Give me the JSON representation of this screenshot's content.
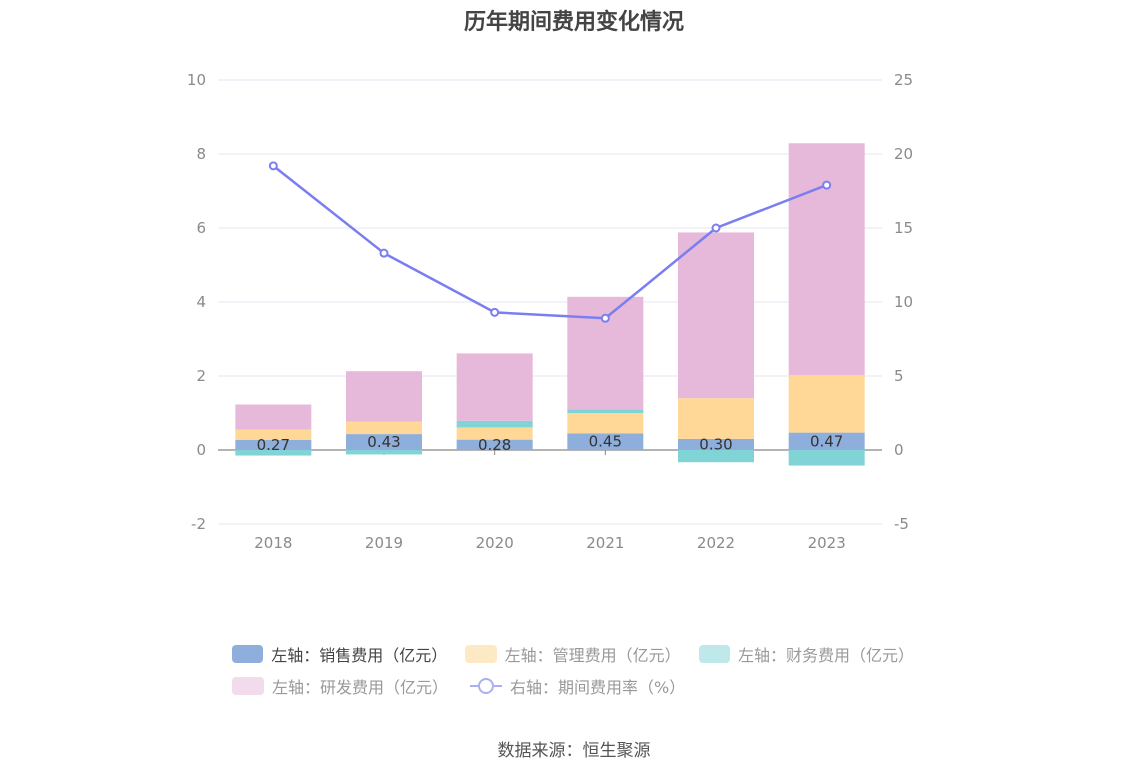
{
  "title": "历年期间费用变化情况",
  "source": "数据来源：恒生聚源",
  "colors": {
    "sales": "#8eaedc",
    "admin": "#ffd898",
    "finance": "#80d4d6",
    "rd": "#e6b8da",
    "rate": "#7b7ef0",
    "grid": "#e6e6f2",
    "zero": "#888888"
  },
  "legend": [
    {
      "label": "左轴：销售费用（亿元）",
      "color": "#8eaedc",
      "active": true
    },
    {
      "label": "左轴：管理费用（亿元）",
      "color": "#fde9c4",
      "active": false
    },
    {
      "label": "左轴：财务费用（亿元）",
      "color": "#bfe8ea",
      "active": false
    },
    {
      "label": "左轴：研发费用（亿元）",
      "color": "#f2dcec",
      "active": false
    },
    {
      "label": "右轴：期间费用率（%）",
      "color": "#aab0f0",
      "active": false,
      "line": true
    }
  ],
  "chart_data": {
    "type": "bar",
    "stacked": true,
    "categories": [
      "2018",
      "2019",
      "2020",
      "2021",
      "2022",
      "2023"
    ],
    "series": [
      {
        "name": "左轴：销售费用（亿元）",
        "axis": "left",
        "values": [
          0.27,
          0.43,
          0.28,
          0.45,
          0.3,
          0.47
        ],
        "labels": [
          "0.27",
          "0.43",
          "0.28",
          "0.45",
          "0.30",
          "0.47"
        ]
      },
      {
        "name": "左轴：管理费用（亿元）",
        "axis": "left",
        "values": [
          0.28,
          0.34,
          0.33,
          0.55,
          1.1,
          1.55
        ]
      },
      {
        "name": "左轴：财务费用（亿元）",
        "axis": "left",
        "values": [
          -0.15,
          -0.12,
          0.18,
          0.1,
          -0.33,
          -0.42
        ]
      },
      {
        "name": "左轴：研发费用（亿元）",
        "axis": "left",
        "values": [
          0.68,
          1.36,
          1.82,
          3.04,
          4.48,
          6.27
        ]
      },
      {
        "name": "右轴：期间费用率（%）",
        "axis": "right",
        "type": "line",
        "values": [
          19.2,
          13.3,
          9.3,
          8.9,
          15.0,
          17.9
        ]
      }
    ],
    "left_axis": {
      "ylim": [
        -2,
        10
      ],
      "ticks": [
        "-2",
        "0",
        "2",
        "4",
        "6",
        "8",
        "10"
      ]
    },
    "right_axis": {
      "ylim": [
        -5,
        25
      ],
      "ticks": [
        "-5",
        "0",
        "5",
        "10",
        "15",
        "20",
        "25"
      ]
    },
    "grid": true,
    "legend_position": "bottom"
  }
}
